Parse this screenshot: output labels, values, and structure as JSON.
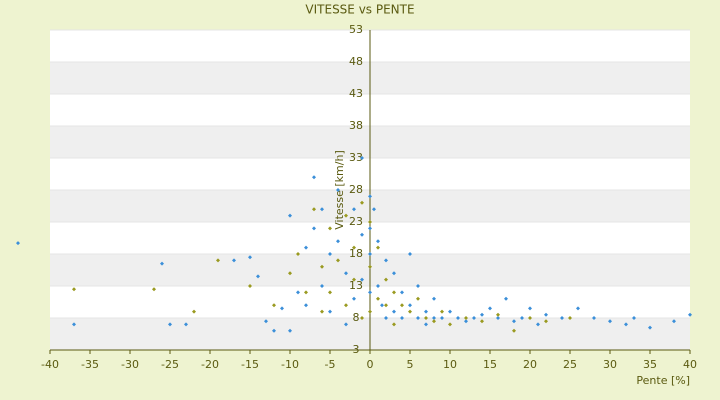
{
  "chart_data": {
    "type": "scatter",
    "title": "VITESSE vs PENTE",
    "x_label": "Pente [%]",
    "y_label": "Vitesse [km/h]",
    "xlim": [
      -40,
      40
    ],
    "xticks": [
      -40,
      -35,
      -30,
      -25,
      -20,
      -15,
      -10,
      -5,
      0,
      5,
      10,
      15,
      20,
      25,
      30,
      35,
      40
    ],
    "ylim": [
      3,
      53
    ],
    "yticks": [
      3,
      8,
      13,
      18,
      23,
      28,
      33,
      38,
      43,
      48,
      53
    ],
    "grid": true,
    "series": [
      {
        "name": null,
        "color": "#3b8fd9",
        "x": [
          -44,
          -37,
          -26,
          -25,
          -23,
          -17,
          -15,
          -14,
          -13,
          -12,
          -11,
          -10,
          -10,
          -9,
          -8,
          -8,
          -7,
          -7,
          -6,
          -6,
          -5,
          -5,
          -4,
          -4,
          -3,
          -3,
          -2,
          -2,
          -1,
          -1,
          -1,
          0,
          0,
          0,
          0,
          0.5,
          1,
          1,
          1.5,
          2,
          2,
          3,
          3,
          4,
          4,
          5,
          5,
          6,
          6,
          7,
          7,
          8,
          8,
          9,
          10,
          11,
          12,
          13,
          14,
          15,
          16,
          17,
          18,
          19,
          20,
          21,
          22,
          24,
          26,
          28,
          30,
          32,
          33,
          35,
          38,
          40
        ],
        "values": [
          19.7,
          7,
          16.5,
          7,
          7,
          17,
          17.5,
          14.5,
          7.5,
          6,
          9.5,
          6,
          24,
          12,
          19,
          10,
          30,
          22,
          25,
          13,
          18,
          9,
          28,
          20,
          15,
          7,
          25,
          11,
          33,
          21,
          14,
          27,
          22,
          18,
          12,
          25,
          20,
          13,
          10,
          17,
          8,
          15,
          9,
          12,
          8,
          18,
          10,
          13,
          8,
          9,
          7,
          11,
          8,
          8,
          9,
          8,
          7.5,
          8,
          8.5,
          9.5,
          8,
          11,
          7.5,
          8,
          9.5,
          7,
          8.5,
          8,
          9.5,
          8,
          7.5,
          7,
          8,
          6.5,
          7.5,
          8.5
        ]
      },
      {
        "name": null,
        "color": "#9a9a20",
        "x": [
          -37,
          -27,
          -22,
          -19,
          -15,
          -12,
          -10,
          -9,
          -8,
          -7,
          -6,
          -6,
          -5,
          -5,
          -4,
          -3,
          -3,
          -2,
          -2,
          -1,
          -1,
          0,
          0,
          0,
          1,
          1,
          2,
          2,
          3,
          3,
          4,
          5,
          6,
          7,
          8,
          9,
          10,
          12,
          14,
          16,
          18,
          20,
          22,
          25
        ],
        "values": [
          12.5,
          12.5,
          9,
          17,
          13,
          10,
          15,
          18,
          12,
          25,
          16,
          9,
          22,
          12,
          17,
          24,
          10,
          19,
          14,
          26,
          8,
          23,
          16,
          9,
          19,
          11,
          14,
          10,
          12,
          7,
          10,
          9,
          11,
          8,
          7.5,
          9,
          7,
          8,
          7.5,
          8.5,
          6,
          8,
          7.5,
          8
        ]
      }
    ]
  }
}
